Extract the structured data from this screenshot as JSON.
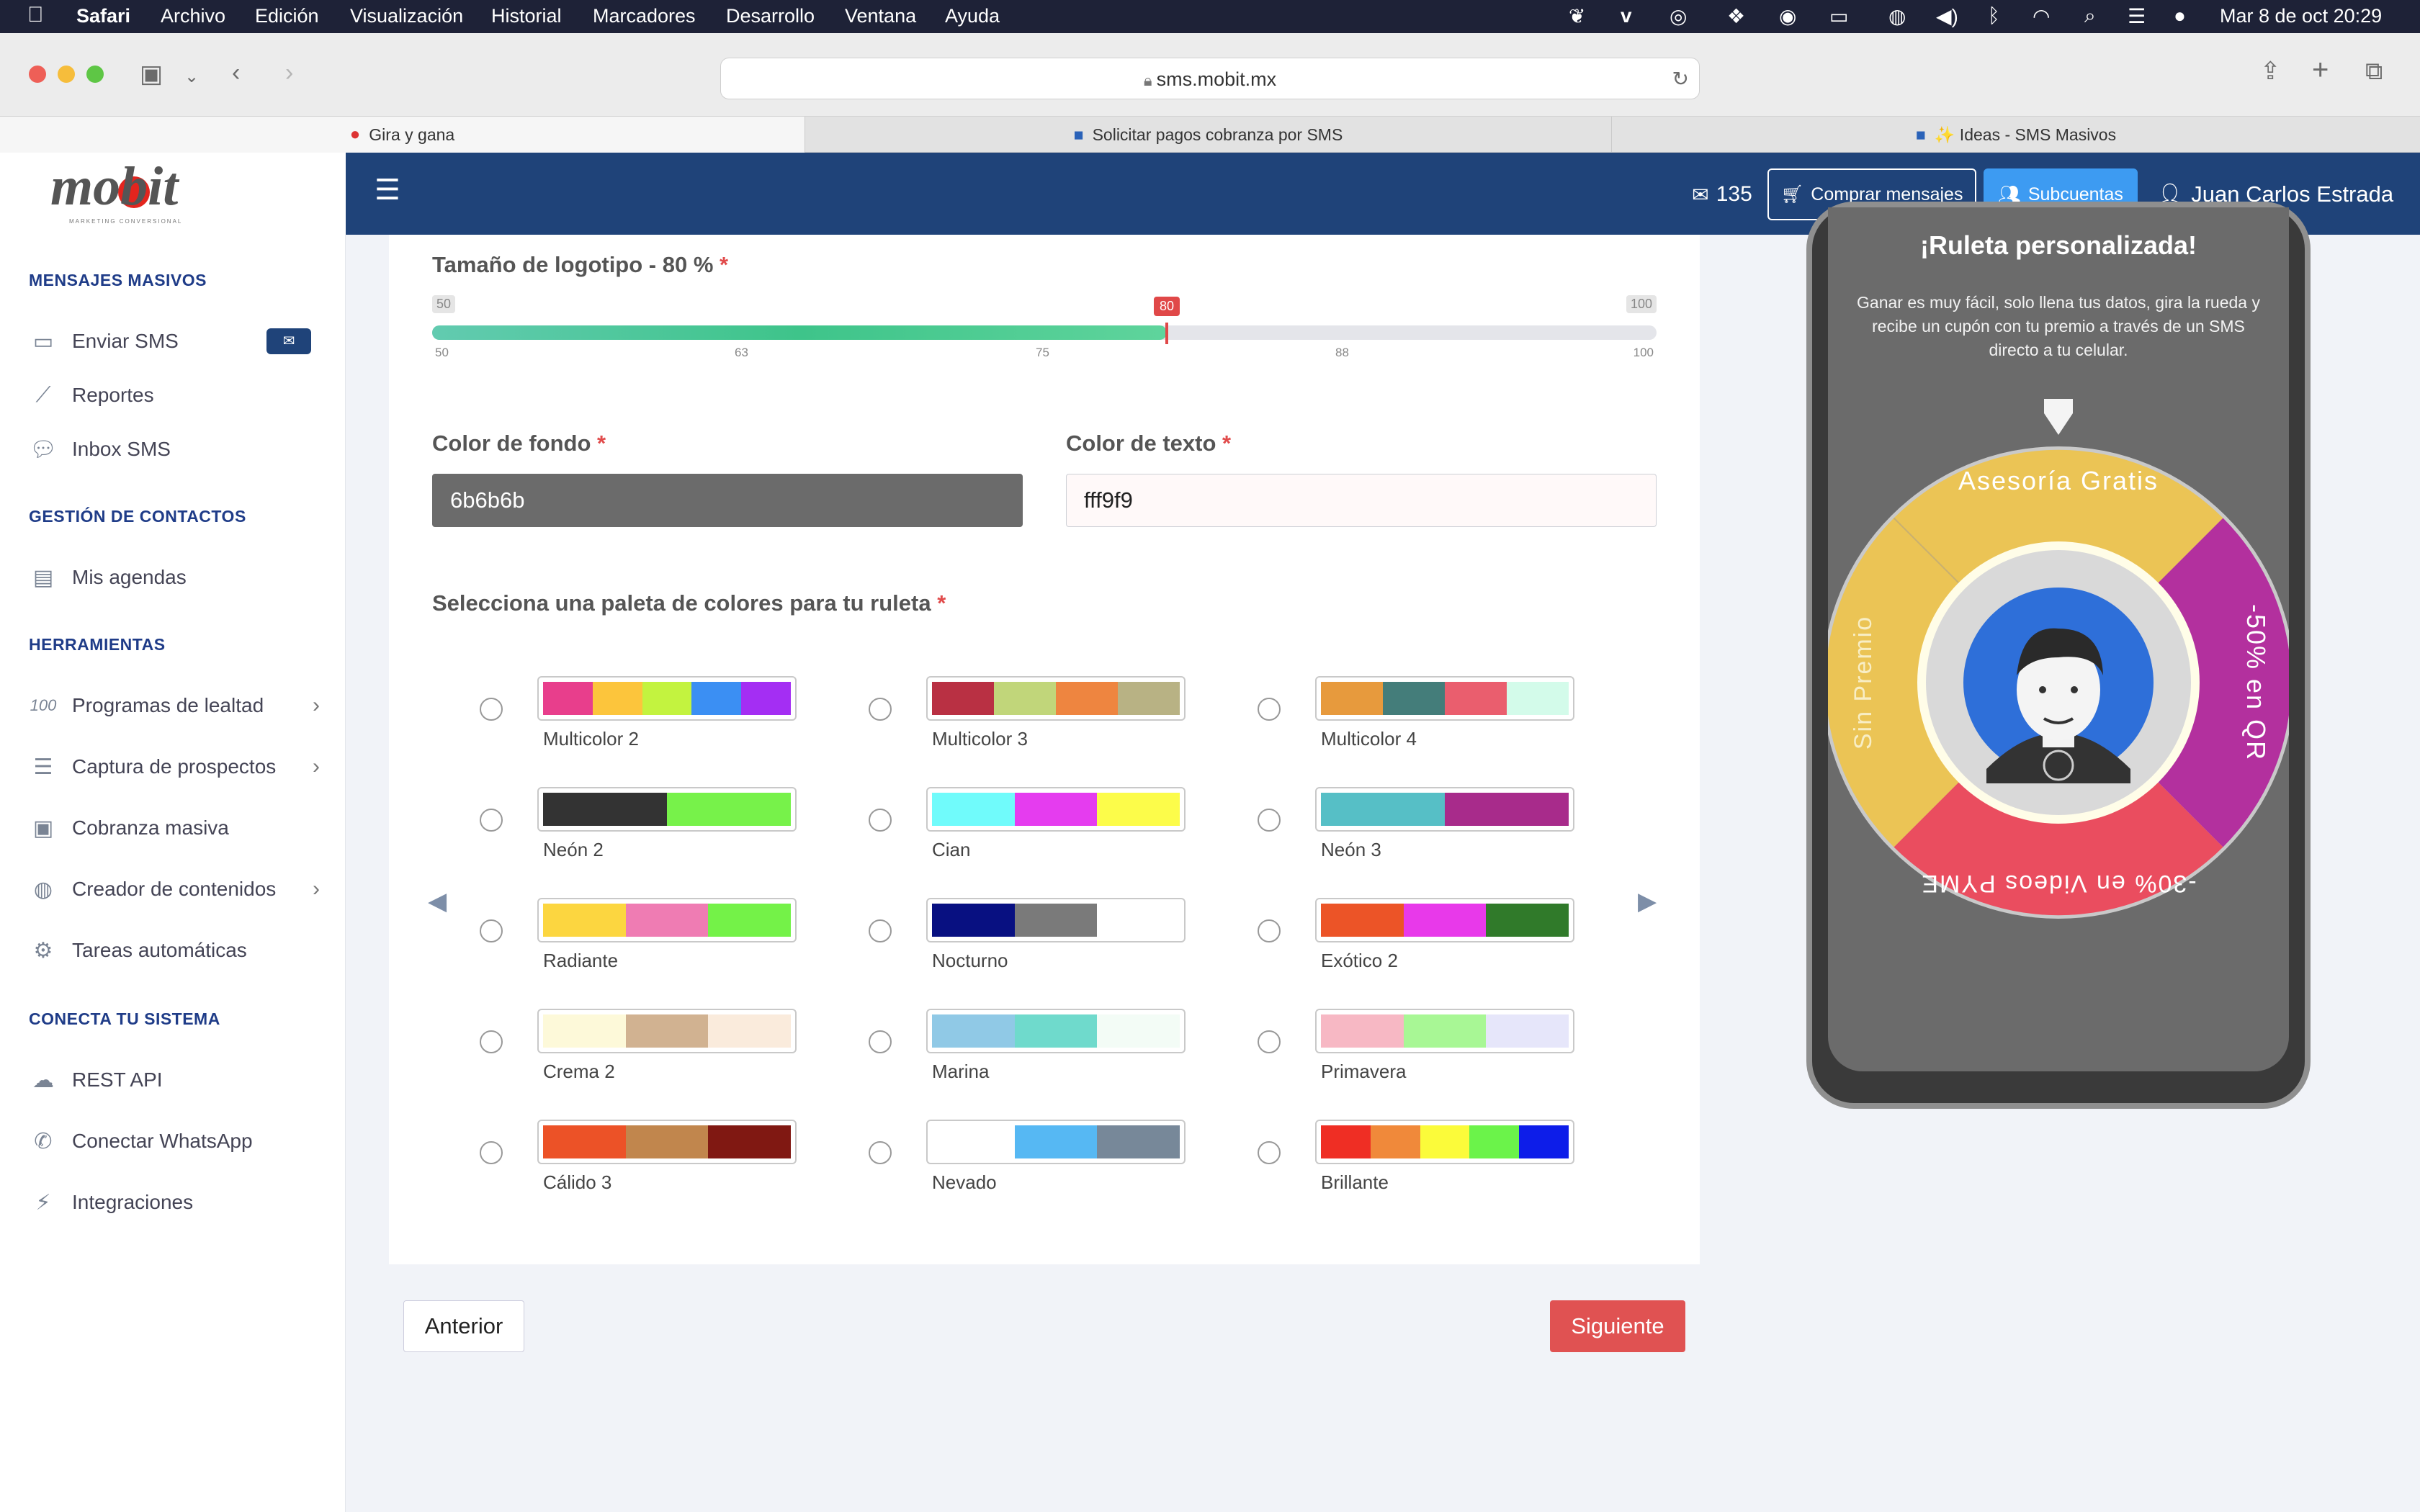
{
  "menubar": {
    "apple": "",
    "app": "Safari",
    "menus": [
      "Archivo",
      "Edición",
      "Visualización",
      "Historial",
      "Marcadores",
      "Desarrollo",
      "Ventana",
      "Ayuda"
    ],
    "datetime": "Mar 8 de oct  20:29"
  },
  "browser": {
    "url": "sms.mobit.mx",
    "tabs": [
      {
        "title": "Gira y gana"
      },
      {
        "title": "Solicitar pagos cobranza por SMS"
      },
      {
        "title": "✨ Ideas - SMS Masivos"
      }
    ]
  },
  "header": {
    "logo": "mobit",
    "logo_tagline": "MARKETING CONVERSIONAL",
    "messages_count": "135",
    "buy_label": "Comprar mensajes",
    "subaccounts_label": "Subcuentas",
    "user_name": "Juan Carlos Estrada"
  },
  "sidebar": {
    "sections": [
      {
        "title": "MENSAJES MASIVOS"
      },
      {
        "title": "GESTIÓN DE CONTACTOS"
      },
      {
        "title": "HERRAMIENTAS"
      },
      {
        "title": "CONECTA TU SISTEMA"
      }
    ],
    "items": [
      {
        "label": "Enviar SMS",
        "icon": "message-icon"
      },
      {
        "label": "Reportes",
        "icon": "chart-line-icon"
      },
      {
        "label": "Inbox SMS",
        "icon": "chat-icon"
      },
      {
        "label": "Mis agendas",
        "icon": "book-icon"
      },
      {
        "label": "Programas de lealtad",
        "icon": "hundred-icon"
      },
      {
        "label": "Captura de prospectos",
        "icon": "list-icon"
      },
      {
        "label": "Cobranza masiva",
        "icon": "cash-icon"
      },
      {
        "label": "Creador de contenidos",
        "icon": "globe-icon"
      },
      {
        "label": "Tareas automáticas",
        "icon": "robot-icon"
      },
      {
        "label": "REST API",
        "icon": "api-icon"
      },
      {
        "label": "Conectar WhatsApp",
        "icon": "whatsapp-icon"
      },
      {
        "label": "Integraciones",
        "icon": "plug-icon"
      }
    ]
  },
  "form": {
    "logo_size_label": "Tamaño de logotipo - 80 %",
    "slider": {
      "min": "50",
      "max": "100",
      "value": "80",
      "value_num": 80,
      "ticks": [
        "50",
        "63",
        "75",
        "88",
        "100"
      ]
    },
    "bg_color_label": "Color de fondo",
    "bg_color_value": "6b6b6b",
    "text_color_label": "Color de texto",
    "text_color_value": "fff9f9",
    "palette_label": "Selecciona una paleta de colores para tu ruleta",
    "required_mark": "*",
    "palettes": [
      {
        "name": "Multicolor 2",
        "colors": [
          "#e83e8c",
          "#fcc53c",
          "#c3f33f",
          "#3b8ff3",
          "#a42ef3"
        ]
      },
      {
        "name": "Multicolor 3",
        "colors": [
          "#b93043",
          "#c1d67a",
          "#ee8540",
          "#b8b284"
        ]
      },
      {
        "name": "Multicolor 4",
        "colors": [
          "#e79a3d",
          "#447d7a",
          "#ea5e6e",
          "#d3fbea"
        ]
      },
      {
        "name": "Neón 2",
        "colors": [
          "#333333",
          "#77f24a"
        ]
      },
      {
        "name": "Cian",
        "colors": [
          "#70fbfb",
          "#e53cef",
          "#fcfc4a"
        ]
      },
      {
        "name": "Neón 3",
        "colors": [
          "#56bfc6",
          "#a82b8b"
        ]
      },
      {
        "name": "Radiante",
        "colors": [
          "#fcd640",
          "#ef7cb3",
          "#74f248"
        ]
      },
      {
        "name": "Nocturno",
        "colors": [
          "#081081",
          "#7a7a7a",
          "#ffffff"
        ]
      },
      {
        "name": "Exótico 2",
        "colors": [
          "#ec5427",
          "#e839ea",
          "#307a2a"
        ]
      },
      {
        "name": "Crema 2",
        "colors": [
          "#fdf9d9",
          "#d1b291",
          "#faebdc"
        ]
      },
      {
        "name": "Marina",
        "colors": [
          "#90c9e6",
          "#6fdacc",
          "#f3fcf6"
        ]
      },
      {
        "name": "Primavera",
        "colors": [
          "#f7b8c4",
          "#a8f795",
          "#e6e6fa"
        ]
      },
      {
        "name": "Cálido 3",
        "colors": [
          "#ec5227",
          "#c1864d",
          "#801812"
        ]
      },
      {
        "name": "Nevado",
        "colors": [
          "#ffffff",
          "#56b8f3",
          "#778899"
        ]
      },
      {
        "name": "Brillante",
        "colors": [
          "#ef2e24",
          "#f0893a",
          "#fbfb3a",
          "#6bf34a",
          "#0d1de9"
        ]
      }
    ],
    "prev_label": "Anterior",
    "next_label": "Siguiente"
  },
  "preview": {
    "title": "¡Ruleta personalizada!",
    "description": "Ganar es muy fácil, solo llena tus datos, gira la rueda y recibe un cupón con tu premio a través de un SMS directo a tu celular.",
    "segments": [
      {
        "label": "Asesoría Gratis",
        "color": "#ebc455"
      },
      {
        "label": "-50% en QR",
        "color": "#b3309e"
      },
      {
        "label": "-30% en Videos PYME",
        "color": "#ea4d5f"
      },
      {
        "label": "Sin Premio",
        "color": "#ebc455"
      }
    ],
    "bg_color": "#6b6b6b"
  },
  "colors": {
    "accent": "#1f4379",
    "danger": "#e05252",
    "subcuentas": "#3d9bf2"
  }
}
